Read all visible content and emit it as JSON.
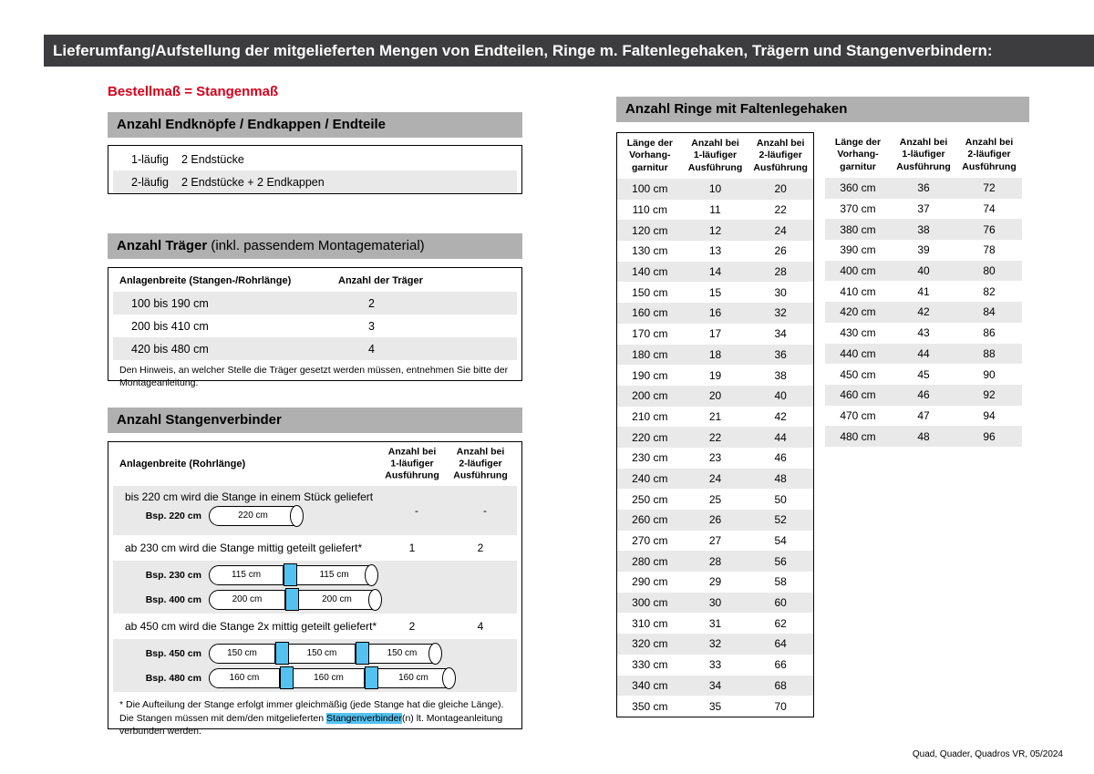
{
  "title_bar": "Lieferumfang/Aufstellung der mitgelieferten Mengen von Endteilen, Ringe m. Faltenlegehaken, Trägern und Stangenverbindern:",
  "red_note": "Bestellmaß = Stangenmaß",
  "footer": "Quad, Quader, Quadros VR, 05/2024",
  "colors": {
    "title_bar_bg": "#3d3d3f",
    "section_header_bg": "#b0b0b0",
    "accent_red": "#d6001c",
    "row_shade": "#e9e9e9",
    "connector_blue": "#54c2f0"
  },
  "left": {
    "endteile": {
      "header": "Anzahl Endknöpfe / Endkappen / Endteile",
      "rows": [
        {
          "label": "1-läufig",
          "value": "2 Endstücke"
        },
        {
          "label": "2-läufig",
          "value": "2 Endstücke + 2 Endkappen"
        }
      ]
    },
    "traeger": {
      "header_bold": "Anzahl Träger",
      "header_rest": " (inkl. passendem Montagematerial)",
      "col_width": "Anlagenbreite (Stangen-/Rohrlänge)",
      "col_count": "Anzahl der Träger",
      "rows": [
        {
          "range": "100 bis 190 cm",
          "count": "2"
        },
        {
          "range": "200 bis 410 cm",
          "count": "3"
        },
        {
          "range": "420 bis 480 cm",
          "count": "4"
        }
      ],
      "note": "Den Hinweis, an welcher Stelle die Träger gesetzt werden müssen, entnehmen Sie bitte der Montageanleitung."
    },
    "verbinder": {
      "header": "Anzahl Stangenverbinder",
      "col_width": "Anlagenbreite (Rohrlänge)",
      "col_1l": "Anzahl bei\n1-läufiger\nAusführung",
      "col_2l": "Anzahl bei\n2-läufiger\nAusführung",
      "sections": [
        {
          "text": "bis 220 cm wird die Stange in einem Stück geliefert",
          "count_1l": "-",
          "count_2l": "-",
          "examples": [
            {
              "label": "Bsp. 220 cm",
              "segments": [
                "220 cm"
              ]
            }
          ]
        },
        {
          "text": "ab 230 cm wird die Stange mittig geteilt geliefert*",
          "count_1l": "1",
          "count_2l": "2",
          "examples": [
            {
              "label": "Bsp. 230 cm",
              "segments": [
                "115 cm",
                "115 cm"
              ]
            },
            {
              "label": "Bsp. 400 cm",
              "segments": [
                "200 cm",
                "200 cm"
              ]
            }
          ]
        },
        {
          "text": "ab 450 cm wird die Stange 2x mittig geteilt geliefert*",
          "count_1l": "2",
          "count_2l": "4",
          "examples": [
            {
              "label": "Bsp. 450 cm",
              "segments": [
                "150 cm",
                "150 cm",
                "150 cm"
              ]
            },
            {
              "label": "Bsp. 480 cm",
              "segments": [
                "160 cm",
                "160 cm",
                "160 cm"
              ]
            }
          ]
        }
      ],
      "footnote_pre": "* Die Aufteilung der Stange erfolgt immer gleichmäßig (jede Stange hat die gleiche Länge). Die Stangen müssen mit dem/den mitgelieferten ",
      "footnote_highlight": "Stangenverbinder",
      "footnote_post": "(n) lt. Montageanleitung verbunden werden."
    }
  },
  "ringe": {
    "header": "Anzahl Ringe mit Faltenlegehaken",
    "col_length": "Länge der\nVorhang-\ngarnitur",
    "col_1l": "Anzahl bei\n1-läufiger\nAusführung",
    "col_2l": "Anzahl bei\n2-läufiger\nAusführung",
    "table1": [
      [
        "100 cm",
        "10",
        "20"
      ],
      [
        "110 cm",
        "11",
        "22"
      ],
      [
        "120 cm",
        "12",
        "24"
      ],
      [
        "130 cm",
        "13",
        "26"
      ],
      [
        "140 cm",
        "14",
        "28"
      ],
      [
        "150 cm",
        "15",
        "30"
      ],
      [
        "160 cm",
        "16",
        "32"
      ],
      [
        "170 cm",
        "17",
        "34"
      ],
      [
        "180 cm",
        "18",
        "36"
      ],
      [
        "190 cm",
        "19",
        "38"
      ],
      [
        "200 cm",
        "20",
        "40"
      ],
      [
        "210 cm",
        "21",
        "42"
      ],
      [
        "220 cm",
        "22",
        "44"
      ],
      [
        "230 cm",
        "23",
        "46"
      ],
      [
        "240 cm",
        "24",
        "48"
      ],
      [
        "250 cm",
        "25",
        "50"
      ],
      [
        "260 cm",
        "26",
        "52"
      ],
      [
        "270 cm",
        "27",
        "54"
      ],
      [
        "280 cm",
        "28",
        "56"
      ],
      [
        "290 cm",
        "29",
        "58"
      ],
      [
        "300 cm",
        "30",
        "60"
      ],
      [
        "310 cm",
        "31",
        "62"
      ],
      [
        "320 cm",
        "32",
        "64"
      ],
      [
        "330 cm",
        "33",
        "66"
      ],
      [
        "340 cm",
        "34",
        "68"
      ],
      [
        "350 cm",
        "35",
        "70"
      ]
    ],
    "table2": [
      [
        "360 cm",
        "36",
        "72"
      ],
      [
        "370 cm",
        "37",
        "74"
      ],
      [
        "380 cm",
        "38",
        "76"
      ],
      [
        "390 cm",
        "39",
        "78"
      ],
      [
        "400 cm",
        "40",
        "80"
      ],
      [
        "410 cm",
        "41",
        "82"
      ],
      [
        "420 cm",
        "42",
        "84"
      ],
      [
        "430 cm",
        "43",
        "86"
      ],
      [
        "440 cm",
        "44",
        "88"
      ],
      [
        "450 cm",
        "45",
        "90"
      ],
      [
        "460 cm",
        "46",
        "92"
      ],
      [
        "470 cm",
        "47",
        "94"
      ],
      [
        "480 cm",
        "48",
        "96"
      ]
    ]
  }
}
